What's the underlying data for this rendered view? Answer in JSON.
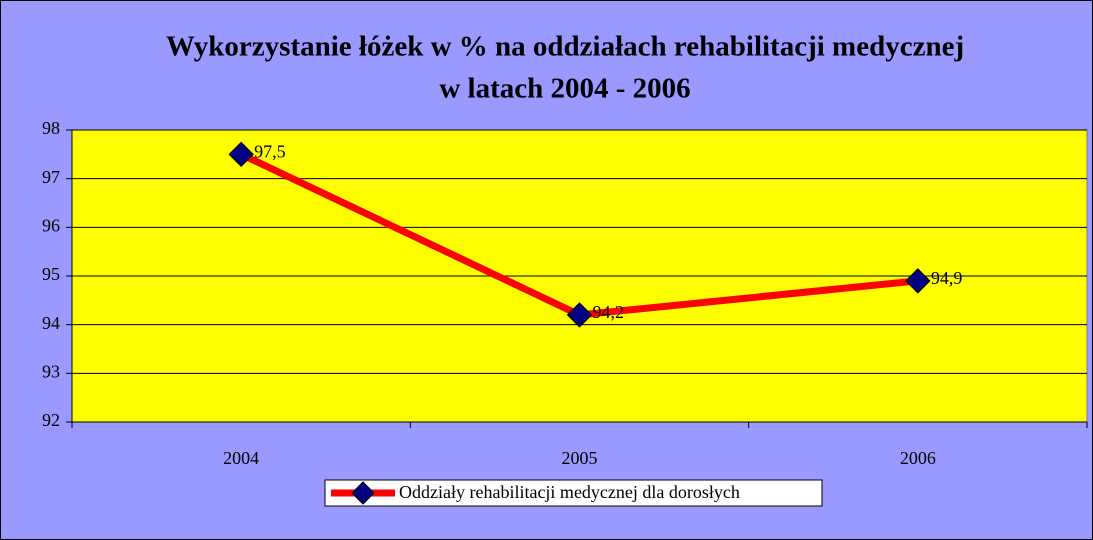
{
  "chart_data": {
    "type": "line",
    "title": [
      "Wykorzystanie łóżek  w % na oddziałach rehabilitacji medycznej",
      "w latach 2004 - 2006"
    ],
    "categories": [
      "2004",
      "2005",
      "2006"
    ],
    "series": [
      {
        "name": "Oddziały rehabilitacji medycznej dla dorosłych",
        "color": "#ff0000",
        "marker_color": "#000080",
        "values": [
          97.5,
          94.2,
          94.9
        ],
        "value_labels": [
          "97,5",
          "94,2",
          "94,9"
        ]
      }
    ],
    "ylim": [
      92,
      98
    ],
    "yticks": [
      92,
      93,
      94,
      95,
      96,
      97,
      98
    ],
    "grid": true,
    "legend": "bottom",
    "background": "#9999ff",
    "plot_background": "#ffff00"
  }
}
